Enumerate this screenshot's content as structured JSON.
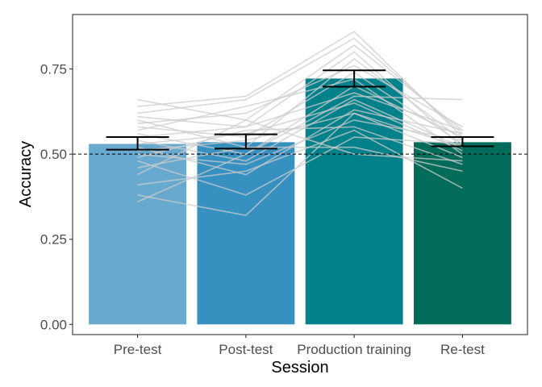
{
  "chart_data": {
    "type": "bar",
    "xlabel": "Session",
    "ylabel": "Accuracy",
    "categories": [
      "Pre-test",
      "Post-test",
      "Production training",
      "Re-test"
    ],
    "values": [
      0.53,
      0.535,
      0.722,
      0.535
    ],
    "error_bars": [
      {
        "low": 0.513,
        "high": 0.55
      },
      {
        "low": 0.516,
        "high": 0.558
      },
      {
        "low": 0.698,
        "high": 0.746
      },
      {
        "low": 0.523,
        "high": 0.55
      }
    ],
    "bar_colors": [
      "#67a9cf",
      "#3690c0",
      "#02818a",
      "#016c59"
    ],
    "y_ticks": [
      "0.00",
      "0.25",
      "0.50",
      "0.75"
    ],
    "y_tick_values": [
      0,
      0.25,
      0.5,
      0.75
    ],
    "ylim": [
      -0.03,
      0.91
    ],
    "reference_line": 0.5,
    "grid": false,
    "participants": [
      [
        0.66,
        0.6,
        0.82,
        0.57
      ],
      [
        0.64,
        0.67,
        0.86,
        0.55
      ],
      [
        0.62,
        0.66,
        0.84,
        0.56
      ],
      [
        0.61,
        0.58,
        0.8,
        0.52
      ],
      [
        0.6,
        0.52,
        0.78,
        0.54
      ],
      [
        0.59,
        0.62,
        0.76,
        0.58
      ],
      [
        0.58,
        0.55,
        0.74,
        0.53
      ],
      [
        0.57,
        0.64,
        0.72,
        0.5
      ],
      [
        0.56,
        0.5,
        0.7,
        0.55
      ],
      [
        0.55,
        0.58,
        0.68,
        0.57
      ],
      [
        0.54,
        0.48,
        0.66,
        0.52
      ],
      [
        0.53,
        0.56,
        0.65,
        0.51
      ],
      [
        0.52,
        0.44,
        0.63,
        0.56
      ],
      [
        0.51,
        0.54,
        0.62,
        0.49
      ],
      [
        0.5,
        0.47,
        0.6,
        0.54
      ],
      [
        0.49,
        0.57,
        0.58,
        0.47
      ],
      [
        0.48,
        0.38,
        0.55,
        0.53
      ],
      [
        0.46,
        0.52,
        0.52,
        0.45
      ],
      [
        0.44,
        0.6,
        0.5,
        0.48
      ],
      [
        0.41,
        0.45,
        0.57,
        0.4
      ],
      [
        0.38,
        0.32,
        0.62,
        0.52
      ],
      [
        0.36,
        0.5,
        0.67,
        0.66
      ]
    ]
  }
}
